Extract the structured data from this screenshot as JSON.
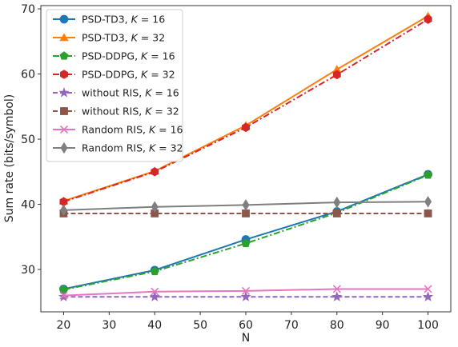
{
  "chart_data": {
    "type": "line",
    "xlabel": "N",
    "ylabel": "Sum rate (bits/symbol)",
    "x": [
      20,
      40,
      60,
      80,
      100
    ],
    "xlim": [
      15,
      105
    ],
    "ylim": [
      23.5,
      70.5
    ],
    "xticks": [
      20,
      30,
      40,
      50,
      60,
      70,
      80,
      90,
      100
    ],
    "yticks": [
      30,
      40,
      50,
      60,
      70
    ],
    "grid": false,
    "legend_position": "top-left",
    "series": [
      {
        "name_prefix": "PSD-TD3, ",
        "k_value": "16",
        "values": [
          27.0,
          29.9,
          34.6,
          38.9,
          44.6
        ],
        "color": "#1f77b4",
        "dash": "solid",
        "marker": "circle"
      },
      {
        "name_prefix": "PSD-TD3, ",
        "k_value": "32",
        "values": [
          40.5,
          45.1,
          52.1,
          60.7,
          68.9
        ],
        "color": "#ff7f0e",
        "dash": "solid",
        "marker": "triangle"
      },
      {
        "name_prefix": "PSD-DDPG, ",
        "k_value": "16",
        "values": [
          26.9,
          29.7,
          34.0,
          38.7,
          44.5
        ],
        "color": "#2ca02c",
        "dash": "dashdot",
        "marker": "pentagon"
      },
      {
        "name_prefix": "PSD-DDPG, ",
        "k_value": "32",
        "values": [
          40.4,
          45.0,
          51.8,
          59.9,
          68.4
        ],
        "color": "#d62728",
        "dash": "dashdot",
        "marker": "hexagon"
      },
      {
        "name_prefix": "without RIS, ",
        "k_value": "16",
        "values": [
          25.8,
          25.8,
          25.8,
          25.8,
          25.8
        ],
        "color": "#9467bd",
        "dash": "dashed",
        "marker": "star"
      },
      {
        "name_prefix": "without RIS, ",
        "k_value": "32",
        "values": [
          38.6,
          38.6,
          38.6,
          38.6,
          38.6
        ],
        "color": "#8c564b",
        "dash": "dashed",
        "marker": "square"
      },
      {
        "name_prefix": "Random RIS, ",
        "k_value": "16",
        "values": [
          26.0,
          26.6,
          26.7,
          27.0,
          27.0
        ],
        "color": "#e377c2",
        "dash": "solid",
        "marker": "x"
      },
      {
        "name_prefix": "Random RIS, ",
        "k_value": "32",
        "values": [
          39.1,
          39.6,
          39.9,
          40.3,
          40.4
        ],
        "color": "#7f7f7f",
        "dash": "solid",
        "marker": "diamond"
      }
    ]
  }
}
